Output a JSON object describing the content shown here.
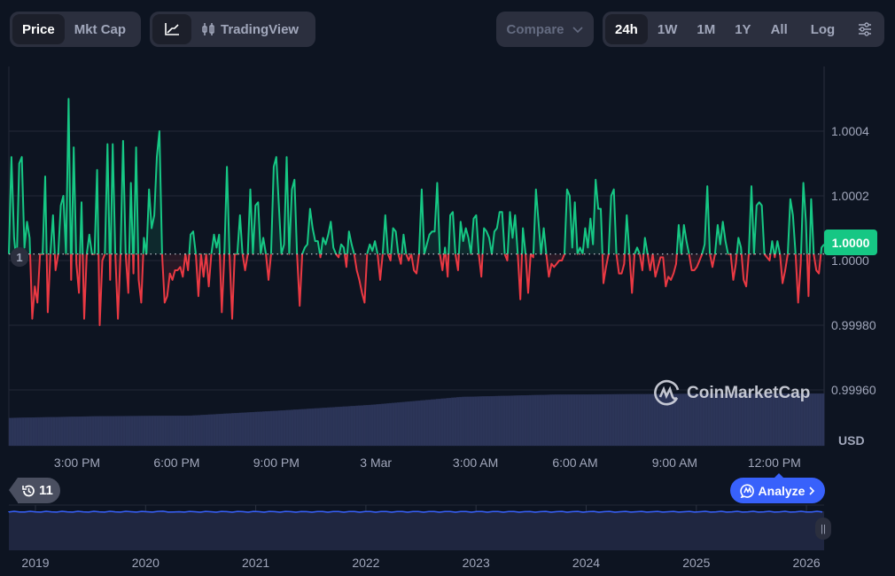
{
  "toolbar": {
    "price_label": "Price",
    "mktcap_label": "Mkt Cap",
    "line_chart_icon": "line-chart-icon",
    "tradingview_label": "TradingView",
    "compare_label": "Compare",
    "ranges": [
      "24h",
      "1W",
      "1M",
      "1Y",
      "All"
    ],
    "active_range": "24h",
    "log_label": "Log",
    "settings_icon": "sliders-icon"
  },
  "colors": {
    "up": "#16c784",
    "down": "#ea3943",
    "accent": "#3861fb",
    "volume": "#2c3558"
  },
  "current_price_tag": "1.0000",
  "open_marker": "1",
  "currency": "USD",
  "brand": "CoinMarketCap",
  "history_count": "11",
  "analyze_label": "Analyze",
  "chart_data": {
    "type": "line",
    "title": "",
    "xlabel": "",
    "ylabel": "USD",
    "y_ticks": [
      "1.0004",
      "1.0002",
      "1.0000",
      "0.99980",
      "0.99960"
    ],
    "y_tick_values": [
      1.0004,
      1.0002,
      1.0,
      0.9998,
      0.9996
    ],
    "ylim": [
      0.99952,
      1.0006
    ],
    "x_ticks": [
      "3:00 PM",
      "6:00 PM",
      "9:00 PM",
      "3 Mar",
      "3:00 AM",
      "6:00 AM",
      "9:00 AM",
      "12:00 PM"
    ],
    "open_price": 1.00002,
    "delta_unit": 1e-05,
    "price_deltas": [
      0,
      30,
      5,
      -3,
      28,
      30,
      2,
      10,
      5,
      -20,
      -10,
      -15,
      0,
      0,
      24,
      -18,
      0,
      12,
      -5,
      0,
      15,
      18,
      0,
      48,
      -8,
      33,
      -3,
      -12,
      16,
      -20,
      0,
      6,
      0,
      0,
      26,
      -22,
      -2,
      0,
      34,
      -8,
      34,
      0,
      -20,
      0,
      35,
      0,
      -12,
      22,
      -6,
      33,
      -8,
      -15,
      5,
      0,
      20,
      8,
      12,
      30,
      38,
      0,
      -15,
      -13,
      -6,
      -8,
      -5,
      -5,
      -4,
      -7,
      0,
      -5,
      6,
      7,
      0,
      -13,
      0,
      -7,
      0,
      -10,
      0,
      6,
      2,
      6,
      -18,
      0,
      27,
      0,
      -20,
      0,
      0,
      12,
      0,
      -5,
      0,
      20,
      0,
      15,
      16,
      0,
      5,
      0,
      -8,
      0,
      27,
      30,
      15,
      0,
      3,
      30,
      0,
      20,
      23,
      0,
      -16,
      0,
      2,
      3,
      14,
      8,
      4,
      4,
      -1,
      5,
      3,
      6,
      10,
      2,
      0,
      -1,
      3,
      2,
      -4,
      7,
      3,
      0,
      -5,
      -8,
      -12,
      -15,
      0,
      3,
      1,
      4,
      0,
      -8,
      0,
      12,
      0,
      -2,
      8,
      7,
      0,
      -3,
      6,
      0,
      -2,
      0,
      -5,
      -6,
      0,
      20,
      0,
      3,
      6,
      7,
      7,
      22,
      0,
      -5,
      2,
      -7,
      12,
      13,
      0,
      -5,
      10,
      4,
      8,
      5,
      0,
      11,
      12,
      0,
      -7,
      8,
      7,
      5,
      0,
      7,
      8,
      13,
      13,
      0,
      -2,
      13,
      5,
      12,
      0,
      -14,
      8,
      0,
      -12,
      0,
      -1,
      20,
      10,
      0,
      8,
      0,
      -7,
      -3,
      -4,
      -3,
      -2,
      -2,
      0,
      20,
      18,
      2,
      16,
      0,
      2,
      0,
      8,
      2,
      11,
      3,
      23,
      14,
      14,
      -9,
      -4,
      0,
      18,
      20,
      0,
      -6,
      -6,
      -3,
      12,
      0,
      -12,
      0,
      2,
      0,
      -5,
      5,
      0,
      -5,
      0,
      -7,
      -4,
      -1,
      -1,
      -10,
      -7,
      -8,
      -6,
      -3,
      9,
      0,
      9,
      4,
      0,
      -5,
      -5,
      -4,
      -2,
      0,
      3,
      21,
      0,
      -4,
      0,
      9,
      3,
      10,
      4,
      0,
      0,
      -8,
      -3,
      5,
      2,
      -8,
      -10,
      0,
      21,
      0,
      15,
      16,
      15,
      0,
      -1,
      -2,
      4,
      -1,
      4,
      0,
      -9,
      -5,
      0,
      17,
      12,
      0,
      -15,
      -3,
      22,
      10,
      -13,
      17,
      0,
      -5,
      -6,
      2,
      3
    ],
    "volume_relative_trend": [
      0.49,
      0.52,
      0.53,
      0.62,
      0.72,
      0.86,
      0.9,
      0.91,
      0.92,
      0.92
    ],
    "navigator": {
      "type": "area",
      "x_ticks": [
        "2019",
        "2020",
        "2021",
        "2022",
        "2023",
        "2024",
        "2025",
        "2026"
      ]
    }
  }
}
